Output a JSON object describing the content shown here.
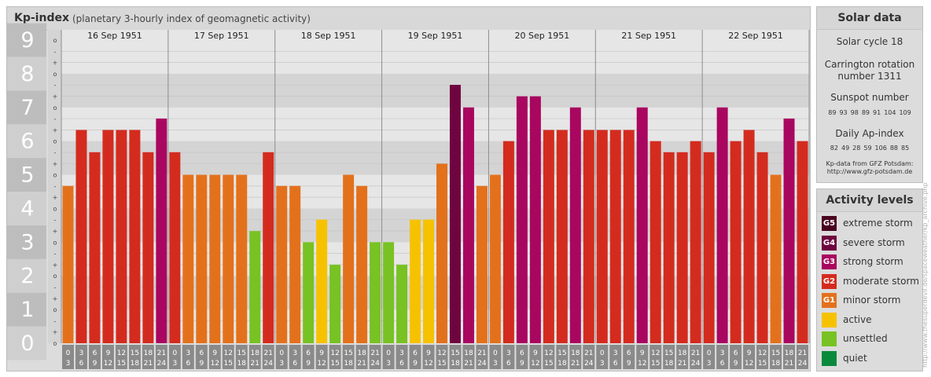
{
  "title": "Kp-index",
  "subtitle": "(planetary 3-hourly index of geomagnetic activity)",
  "solar": {
    "heading": "Solar data",
    "cycle": "Solar cycle 18",
    "rotation_line1": "Carrington rotation",
    "rotation_line2": "number 1311",
    "sunspot_heading": "Sunspot number",
    "sunspot_values": [
      "89",
      "93",
      "98",
      "89",
      "91",
      "104",
      "109"
    ],
    "ap_heading": "Daily Ap-index",
    "ap_values": [
      "82",
      "49",
      "28",
      "59",
      "106",
      "88",
      "85"
    ],
    "credit_line1": "Kp-data from GFZ Potsdam:",
    "credit_line2": "http://www.gfz-potsdam.de"
  },
  "activity": {
    "heading": "Activity levels",
    "levels": [
      {
        "badge": "G5",
        "label": "extreme storm",
        "color": "#4a0020"
      },
      {
        "badge": "G4",
        "label": "severe storm",
        "color": "#6f0540"
      },
      {
        "badge": "G3",
        "label": "strong storm",
        "color": "#a90660"
      },
      {
        "badge": "G2",
        "label": "moderate storm",
        "color": "#d42b1f"
      },
      {
        "badge": "G1",
        "label": "minor storm",
        "color": "#e3711c"
      },
      {
        "badge": "",
        "label": "active",
        "color": "#f6c200"
      },
      {
        "badge": "",
        "label": "unsettled",
        "color": "#78c223"
      },
      {
        "badge": "",
        "label": "quiet",
        "color": "#0a8a3c"
      }
    ]
  },
  "side_credit": "http://www.thesuperdevil.de/spaceweather/kp_archive.php",
  "chart_data": {
    "type": "bar",
    "ylim": [
      0,
      9
    ],
    "y_major_ticks": [
      "0",
      "1",
      "2",
      "3",
      "4",
      "5",
      "6",
      "7",
      "8",
      "9"
    ],
    "y_minor_labels": [
      "o",
      "+",
      "-"
    ],
    "days": [
      "16 Sep 1951",
      "17 Sep 1951",
      "18 Sep 1951",
      "19 Sep 1951",
      "20 Sep 1951",
      "21 Sep 1951",
      "22 Sep 1951"
    ],
    "hour_slots_top": [
      "0",
      "3",
      "6",
      "9",
      "12",
      "15",
      "18",
      "21"
    ],
    "hour_slots_bottom": [
      "3",
      "6",
      "9",
      "12",
      "15",
      "18",
      "21",
      "24"
    ],
    "values": [
      [
        4.67,
        6.33,
        5.67,
        6.33,
        6.33,
        6.33,
        5.67,
        6.67
      ],
      [
        5.67,
        5.0,
        5.0,
        5.0,
        5.0,
        5.0,
        3.33,
        5.67
      ],
      [
        4.67,
        4.67,
        3.0,
        3.67,
        2.33,
        5.0,
        4.67,
        3.0
      ],
      [
        3.0,
        2.33,
        3.67,
        3.67,
        5.33,
        7.67,
        7.0,
        4.67
      ],
      [
        5.0,
        6.0,
        7.33,
        7.33,
        6.33,
        6.33,
        7.0,
        6.33
      ],
      [
        6.33,
        6.33,
        6.33,
        7.0,
        6.0,
        5.67,
        5.67,
        6.0
      ],
      [
        5.67,
        7.0,
        6.0,
        6.33,
        5.67,
        5.0,
        6.67,
        6.0
      ]
    ]
  }
}
